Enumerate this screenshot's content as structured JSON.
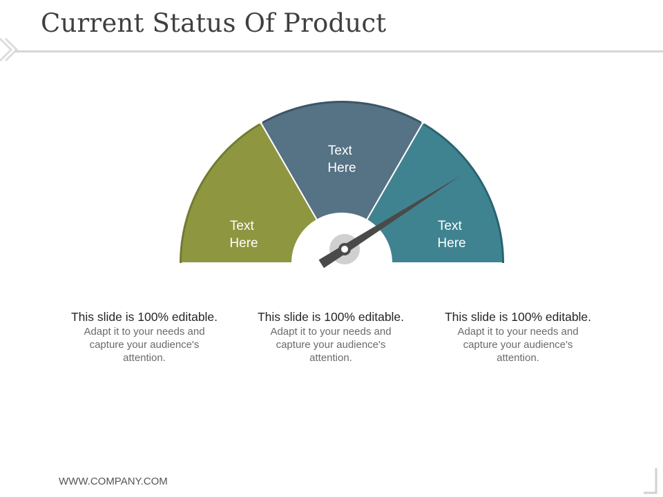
{
  "slide": {
    "title": "Current Status Of Product",
    "footer": "WWW.COMPANY.COM"
  },
  "gauge": {
    "needle_level": 0.82,
    "segments": [
      {
        "line1": "Text",
        "line2": "Here",
        "color": "#8f9640",
        "edge": "#717a2f"
      },
      {
        "line1": "Text",
        "line2": "Here",
        "color": "#567285",
        "edge": "#3b5566"
      },
      {
        "line1": "Text",
        "line2": "Here",
        "color": "#3f8391",
        "edge": "#2a6370"
      }
    ],
    "needle_color": "#4a4a4a",
    "hub_color": "#d0d0d0"
  },
  "descriptions": [
    {
      "heading": "This slide is 100% editable.",
      "body": "Adapt it to your needs and capture your audience's attention."
    },
    {
      "heading": "This slide is 100% editable.",
      "body": "Adapt it to your needs and capture your audience's attention."
    },
    {
      "heading": "This slide is 100% editable.",
      "body": "Adapt it to your needs and capture your audience's attention."
    }
  ]
}
